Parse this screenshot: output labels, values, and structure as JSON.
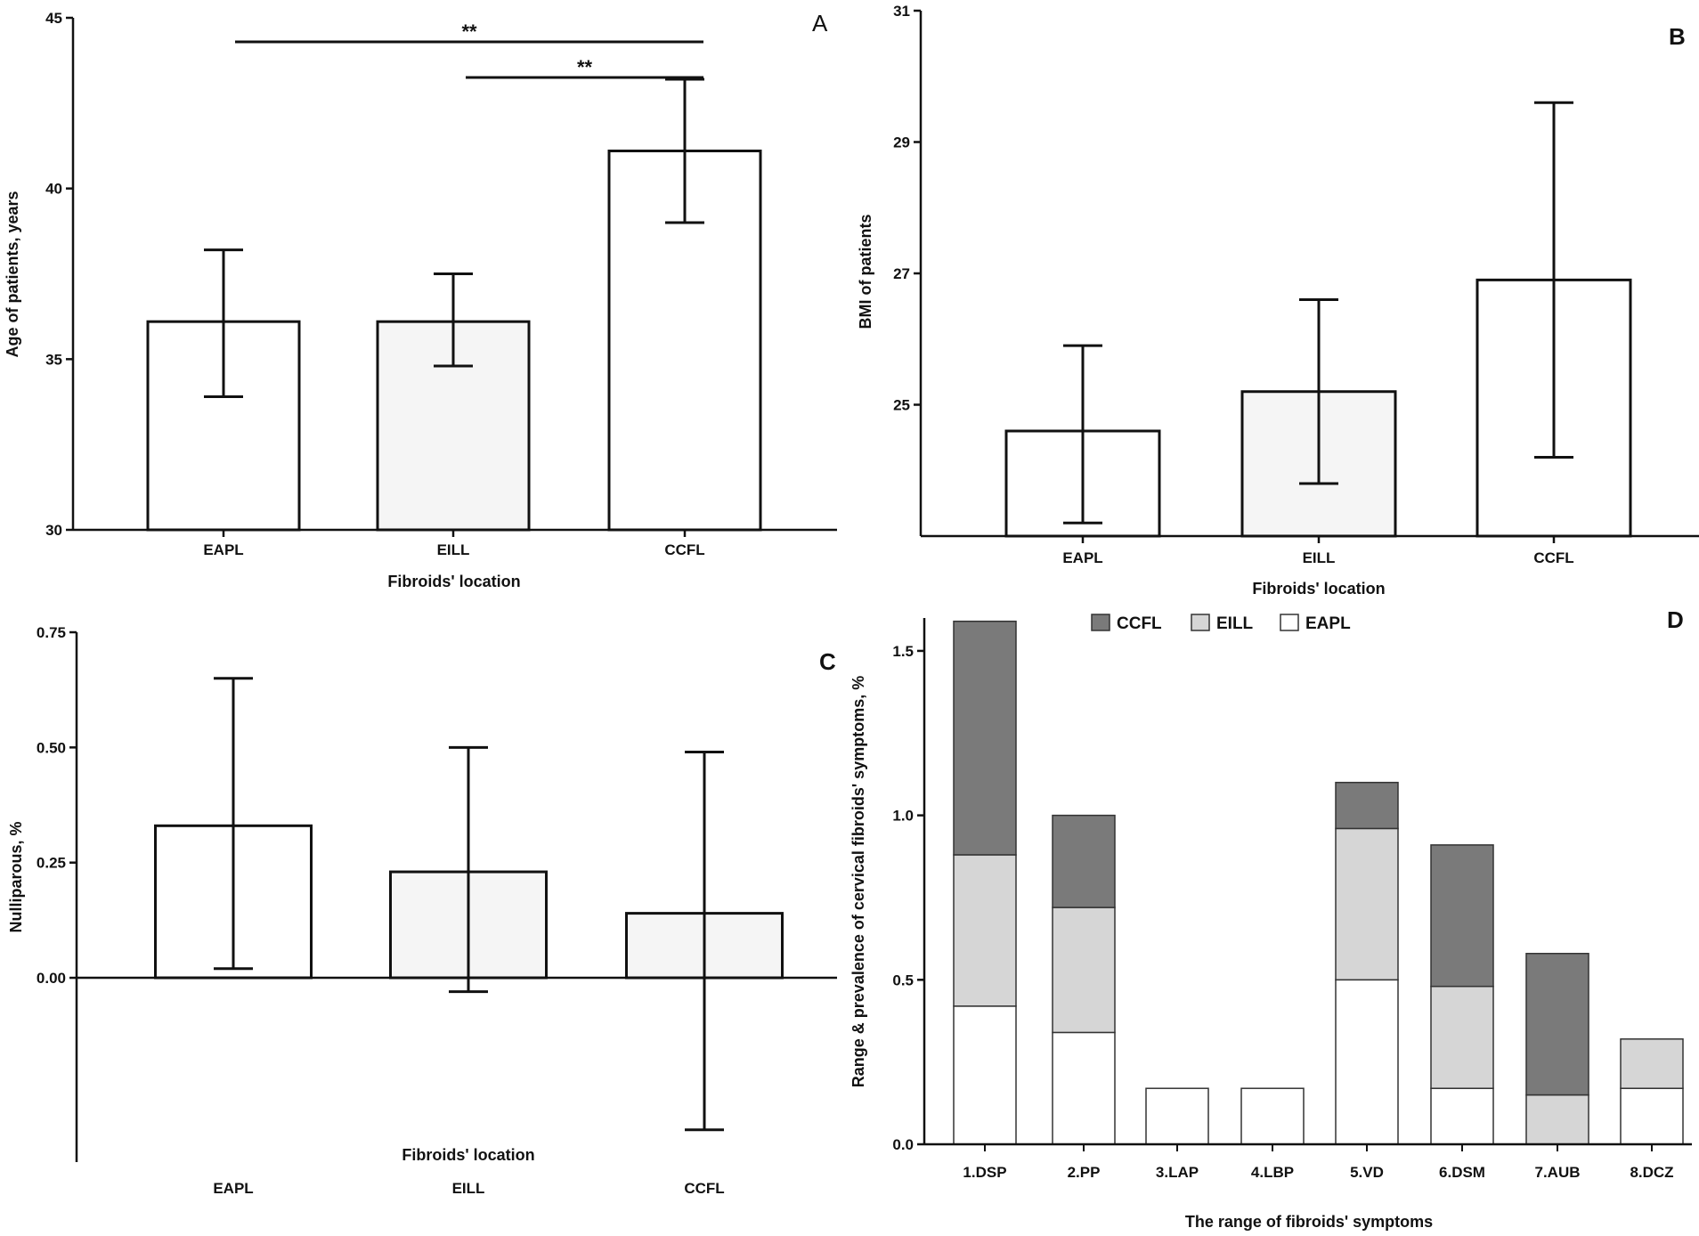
{
  "chart_data": [
    {
      "panel": "A",
      "type": "bar",
      "categories": [
        "EAPL",
        "EILL",
        "CCFL"
      ],
      "values": [
        36.1,
        36.1,
        41.1
      ],
      "error_low": [
        33.9,
        34.8,
        39.0
      ],
      "error_high": [
        38.2,
        37.5,
        43.2
      ],
      "xlabel": "Fibroids' location",
      "ylabel": "Age of patients, years",
      "ylim": [
        30,
        45
      ],
      "yticks": [
        30,
        35,
        40,
        45
      ],
      "significance": [
        {
          "from": 0,
          "to": 2,
          "label": "**"
        },
        {
          "from": 1,
          "to": 2,
          "label": "**"
        }
      ]
    },
    {
      "panel": "B",
      "type": "bar",
      "categories": [
        "EAPL",
        "EILL",
        "CCFL"
      ],
      "values": [
        24.6,
        25.2,
        26.9
      ],
      "error_low": [
        23.2,
        23.8,
        24.2
      ],
      "error_high": [
        25.9,
        26.6,
        29.6
      ],
      "xlabel": "Fibroids' location",
      "ylabel": "BMI of patients",
      "ylim": [
        23,
        31
      ],
      "yticks": [
        25,
        27,
        29,
        31
      ]
    },
    {
      "panel": "C",
      "type": "bar",
      "categories": [
        "EAPL",
        "EILL",
        "CCFL"
      ],
      "values": [
        0.33,
        0.23,
        0.14
      ],
      "error_low": [
        0.02,
        -0.03,
        -0.33
      ],
      "error_high": [
        0.65,
        0.5,
        0.49
      ],
      "xlabel": "Fibroids' location",
      "ylabel": "Nulliparous, %",
      "ylim": [
        -0.4,
        0.75
      ],
      "yticks": [
        "0.00",
        "0.25",
        "0.50",
        "0.75"
      ]
    },
    {
      "panel": "D",
      "type": "bar",
      "stacked": true,
      "categories": [
        "1.DSP",
        "2.PP",
        "3.LAP",
        "4.LBP",
        "5.VD",
        "6.DSM",
        "7.AUB",
        "8.DCZ"
      ],
      "series": [
        {
          "name": "EAPL",
          "values": [
            0.42,
            0.34,
            0.17,
            0.17,
            0.5,
            0.17,
            0.0,
            0.17
          ]
        },
        {
          "name": "EILL",
          "values": [
            0.46,
            0.38,
            0.0,
            0.0,
            0.46,
            0.31,
            0.15,
            0.15
          ]
        },
        {
          "name": "CCFL",
          "values": [
            0.71,
            0.28,
            0.0,
            0.0,
            0.14,
            0.43,
            0.43,
            0.0
          ]
        }
      ],
      "legend": [
        "CCFL",
        "EILL",
        "EAPL"
      ],
      "xlabel": "The range of fibroids' symptoms",
      "ylabel": "Range & prevalence of cervical fibroids' symptoms, %",
      "ylim": [
        0,
        1.6
      ],
      "yticks": [
        "0.0",
        "0.5",
        "1.0",
        "1.5"
      ]
    }
  ],
  "colors": {
    "eapl": "#ffffff",
    "eill": "#d6d6d6",
    "ccfl": "#7a7a7a",
    "eill_bar_light": "#f5f5f5",
    "stroke": "#111111"
  }
}
